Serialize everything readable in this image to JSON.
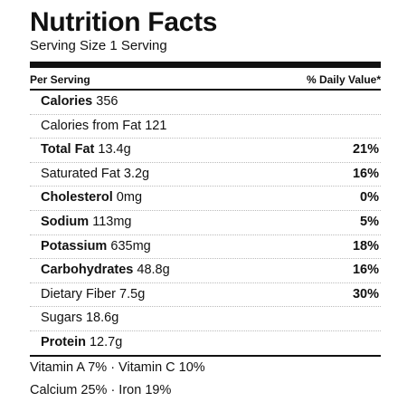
{
  "title": "Nutrition Facts",
  "serving": "Serving Size 1 Serving",
  "header": {
    "left": "Per Serving",
    "right": "% Daily Value*"
  },
  "rows": [
    {
      "name": "Calories",
      "amount": "356",
      "bold": true,
      "pct": ""
    },
    {
      "name": "Calories from Fat",
      "amount": "121",
      "bold": false,
      "pct": ""
    },
    {
      "name": "Total Fat",
      "amount": "13.4g",
      "bold": true,
      "pct": "21%"
    },
    {
      "name": "Saturated Fat",
      "amount": "3.2g",
      "bold": false,
      "pct": "16%"
    },
    {
      "name": "Cholesterol",
      "amount": "0mg",
      "bold": true,
      "pct": "0%"
    },
    {
      "name": "Sodium",
      "amount": "113mg",
      "bold": true,
      "pct": "5%"
    },
    {
      "name": "Potassium",
      "amount": "635mg",
      "bold": true,
      "pct": "18%"
    },
    {
      "name": "Carbohydrates",
      "amount": "48.8g",
      "bold": true,
      "pct": "16%"
    },
    {
      "name": "Dietary Fiber",
      "amount": "7.5g",
      "bold": false,
      "pct": "30%"
    },
    {
      "name": "Sugars",
      "amount": "18.6g",
      "bold": false,
      "pct": ""
    },
    {
      "name": "Protein",
      "amount": "12.7g",
      "bold": true,
      "pct": ""
    }
  ],
  "vitamins": [
    "Vitamin A 7% · Vitamin C 10%",
    "Calcium 25% · Iron 19%"
  ]
}
